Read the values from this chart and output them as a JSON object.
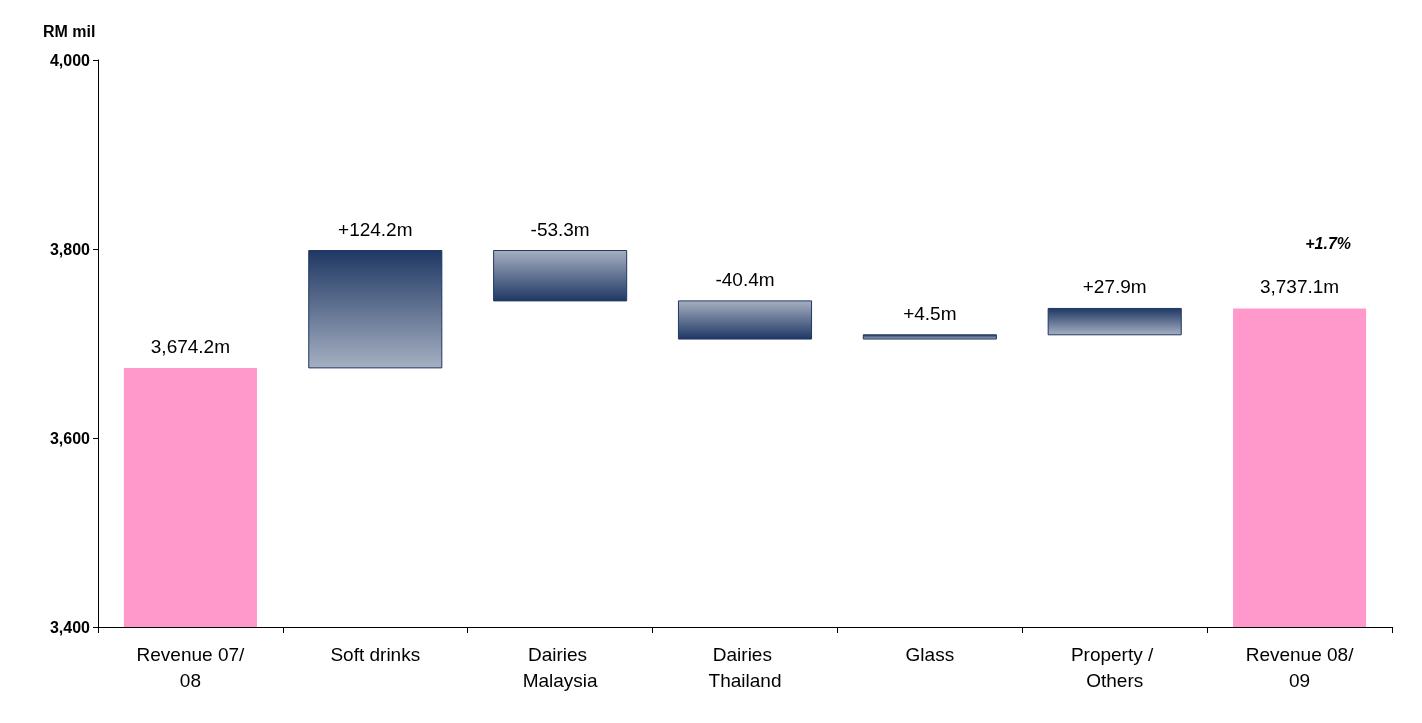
{
  "chart_data": {
    "type": "bar",
    "ylabel": "RM mil",
    "categories": [
      "Revenue 07/08",
      "Soft drinks",
      "Dairies Malaysia",
      "Dairies Thailand",
      "Glass",
      "Property / Others",
      "Revenue 08/09"
    ],
    "values": [
      3674.2,
      124.2,
      -53.3,
      -40.4,
      4.5,
      27.9,
      3737.1
    ],
    "base": [
      null,
      3674.2,
      3798.4,
      3745.1,
      3704.7,
      3709.2,
      null
    ],
    "colors": [
      "#ff99cc",
      "#1f3864",
      "#1f3864",
      "#1f3864",
      "#1f3864",
      "#1f3864",
      "#ff99cc"
    ],
    "value_labels": [
      "3,674.2m",
      "+124.2m",
      "-53.3m",
      "-40.4m",
      "+4.5m",
      "+27.9m",
      "3,737.1m"
    ],
    "ylim": [
      3400,
      4000
    ],
    "yticks": [
      {
        "value": 3400,
        "label": "3,400"
      },
      {
        "value": 3600,
        "label": "3,600"
      },
      {
        "value": 3800,
        "label": "3,800"
      },
      {
        "value": 4000,
        "label": "4,000"
      }
    ],
    "annotations": [
      "+1.7%"
    ],
    "grid": false
  }
}
